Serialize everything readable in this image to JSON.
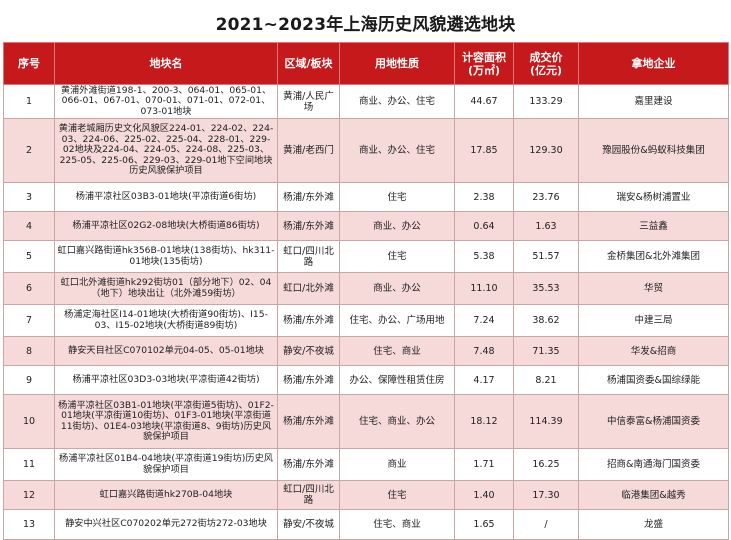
{
  "title": "2021~2023年上海历史风貌遴选地块",
  "columns": [
    "序号",
    "地块名",
    "区域/板块",
    "用地性质",
    "计容面积\n(万㎡)",
    "成交价\n(亿元)",
    "拿地企业"
  ],
  "rows": [
    {
      "no": "1",
      "name": "黄浦外滩街道198-1、200-3、064-01、065-01、066-01、067-01、070-01、071-01、072-01、073-01地块",
      "area": "黄浦/人民广场",
      "use": "商业、办公、住宅",
      "gfa": "44.67",
      "price": "133.29",
      "company": "嘉里建设"
    },
    {
      "no": "2",
      "name": "黄浦老城厢历史文化风貌区224-01、224-02、224-03、224-06、225-02、225-04、228-01、229-02地块及224-04、224-05、224-08、225-03、225-05、225-06、229-03、229-01地下空间地块历史风貌保护项目",
      "area": "黄浦/老西门",
      "use": "商业、办公、住宅",
      "gfa": "17.85",
      "price": "129.30",
      "company": "豫园股份&蚂蚁科技集团"
    },
    {
      "no": "3",
      "name": "杨浦平凉社区03B3-01地块(平凉街道6街坊)",
      "area": "杨浦/东外滩",
      "use": "住宅",
      "gfa": "2.38",
      "price": "23.76",
      "company": "瑞安&杨树浦置业"
    },
    {
      "no": "4",
      "name": "杨浦平凉社区02G2-08地块(大桥街道86街坊)",
      "area": "杨浦/东外滩",
      "use": "商业、办公",
      "gfa": "0.64",
      "price": "1.63",
      "company": "三益鑫"
    },
    {
      "no": "5",
      "name": "虹口嘉兴路街道hk356B-01地块(138街坊)、hk311-01地块(135街坊)",
      "area": "虹口/四川北路",
      "use": "住宅",
      "gfa": "5.38",
      "price": "51.57",
      "company": "金桥集团&北外滩集团"
    },
    {
      "no": "6",
      "name": "虹口北外滩街道hk292街坊01（部分地下）02、04（地下）地块出让（北外滩59街坊）",
      "area": "虹口/北外滩",
      "use": "商业、办公",
      "gfa": "11.10",
      "price": "35.53",
      "company": "华贸"
    },
    {
      "no": "7",
      "name": "杨浦定海社区I14-01地块(大桥街道90街坊)、I15-03、I15-02地块(大桥街道89街坊)",
      "area": "杨浦/东外滩",
      "use": "住宅、办公、广场用地",
      "gfa": "7.24",
      "price": "38.62",
      "company": "中建三局"
    },
    {
      "no": "8",
      "name": "静安天目社区C070102单元04-05、05-01地块",
      "area": "静安/不夜城",
      "use": "住宅、商业",
      "gfa": "7.48",
      "price": "71.35",
      "company": "华发&招商"
    },
    {
      "no": "9",
      "name": "杨浦平凉社区03D3-03地块(平凉街道42街坊)",
      "area": "杨浦/东外滩",
      "use": "办公、保障性租赁住房",
      "gfa": "4.17",
      "price": "8.21",
      "company": "杨浦国资委&国综绿能"
    },
    {
      "no": "10",
      "name": "杨浦平凉社区03B1-01地块(平凉街道5街坊)、01F2-01地块(平凉街道10街坊)、01F3-01地块(平凉街道11街坊)、01E4-03地块(平凉街道8、9街坊)历史风貌保护项目",
      "area": "杨浦/东外滩",
      "use": "住宅、商业、办公",
      "gfa": "18.12",
      "price": "114.39",
      "company": "中信泰富&杨浦国资委"
    },
    {
      "no": "11",
      "name": "杨浦平凉社区01B4-04地块(平凉街道19街坊)历史风貌保护项目",
      "area": "杨浦/东外滩",
      "use": "商业",
      "gfa": "1.71",
      "price": "16.25",
      "company": "招商&南通海门国资委"
    },
    {
      "no": "12",
      "name": "虹口嘉兴路街道hk270B-04地块",
      "area": "虹口/四川北路",
      "use": "住宅",
      "gfa": "1.40",
      "price": "17.30",
      "company": "临港集团&越秀"
    },
    {
      "no": "13",
      "name": "静安中兴社区C070202单元272街坊272-03地块",
      "area": "静安/不夜城",
      "use": "住宅、商业",
      "gfa": "1.65",
      "price": "/",
      "company": "龙盛"
    }
  ]
}
